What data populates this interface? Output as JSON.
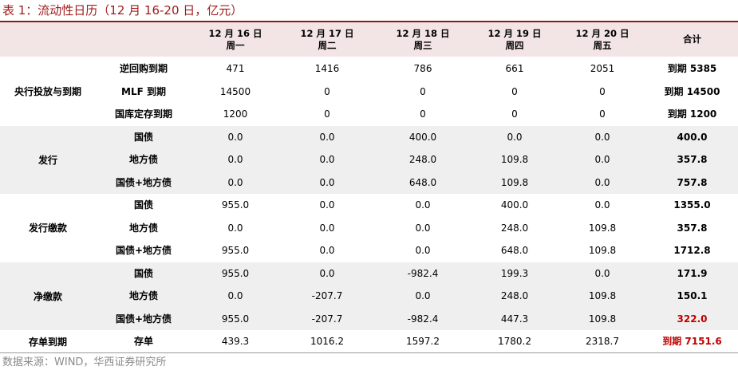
{
  "title": "表 1：流动性日历（12 月 16-20 日，亿元）",
  "source": "数据来源：WIND，华西证券研究所",
  "colors": {
    "title": "#a01c1c",
    "header_bg": "#f3e5e6",
    "band_bg": "#efefef",
    "highlight": "#c00000"
  },
  "header": {
    "days": [
      {
        "date": "12 月 16 日",
        "weekday": "周一"
      },
      {
        "date": "12 月 17 日",
        "weekday": "周二"
      },
      {
        "date": "12 月 18 日",
        "weekday": "周三"
      },
      {
        "date": "12 月 19 日",
        "weekday": "周四"
      },
      {
        "date": "12 月 20 日",
        "weekday": "周五"
      }
    ],
    "total": "合计"
  },
  "groups": [
    {
      "label": "央行投放与到期",
      "shaded": false,
      "rows": [
        {
          "label": "逆回购到期",
          "values": [
            "471",
            "1416",
            "786",
            "661",
            "2051"
          ],
          "total": "到期 5385",
          "highlight": false
        },
        {
          "label": "MLF 到期",
          "values": [
            "14500",
            "0",
            "0",
            "0",
            "0"
          ],
          "total": "到期 14500",
          "highlight": false
        },
        {
          "label": "国库定存到期",
          "values": [
            "1200",
            "0",
            "0",
            "0",
            "0"
          ],
          "total": "到期 1200",
          "highlight": false
        }
      ]
    },
    {
      "label": "发行",
      "shaded": true,
      "rows": [
        {
          "label": "国债",
          "values": [
            "0.0",
            "0.0",
            "400.0",
            "0.0",
            "0.0"
          ],
          "total": "400.0",
          "highlight": false
        },
        {
          "label": "地方债",
          "values": [
            "0.0",
            "0.0",
            "248.0",
            "109.8",
            "0.0"
          ],
          "total": "357.8",
          "highlight": false
        },
        {
          "label": "国债+地方债",
          "values": [
            "0.0",
            "0.0",
            "648.0",
            "109.8",
            "0.0"
          ],
          "total": "757.8",
          "highlight": false
        }
      ]
    },
    {
      "label": "发行缴款",
      "shaded": false,
      "rows": [
        {
          "label": "国债",
          "values": [
            "955.0",
            "0.0",
            "0.0",
            "400.0",
            "0.0"
          ],
          "total": "1355.0",
          "highlight": false
        },
        {
          "label": "地方债",
          "values": [
            "0.0",
            "0.0",
            "0.0",
            "248.0",
            "109.8"
          ],
          "total": "357.8",
          "highlight": false
        },
        {
          "label": "国债+地方债",
          "values": [
            "955.0",
            "0.0",
            "0.0",
            "648.0",
            "109.8"
          ],
          "total": "1712.8",
          "highlight": false
        }
      ]
    },
    {
      "label": "净缴款",
      "shaded": true,
      "rows": [
        {
          "label": "国债",
          "values": [
            "955.0",
            "0.0",
            "-982.4",
            "199.3",
            "0.0"
          ],
          "total": "171.9",
          "highlight": false
        },
        {
          "label": "地方债",
          "values": [
            "0.0",
            "-207.7",
            "0.0",
            "248.0",
            "109.8"
          ],
          "total": "150.1",
          "highlight": false
        },
        {
          "label": "国债+地方债",
          "values": [
            "955.0",
            "-207.7",
            "-982.4",
            "447.3",
            "109.8"
          ],
          "total": "322.0",
          "highlight": true
        }
      ]
    },
    {
      "label": "存单到期",
      "shaded": false,
      "rows": [
        {
          "label": "存单",
          "values": [
            "439.3",
            "1016.2",
            "1597.2",
            "1780.2",
            "2318.7"
          ],
          "total": "到期 7151.6",
          "highlight": true
        }
      ]
    }
  ]
}
